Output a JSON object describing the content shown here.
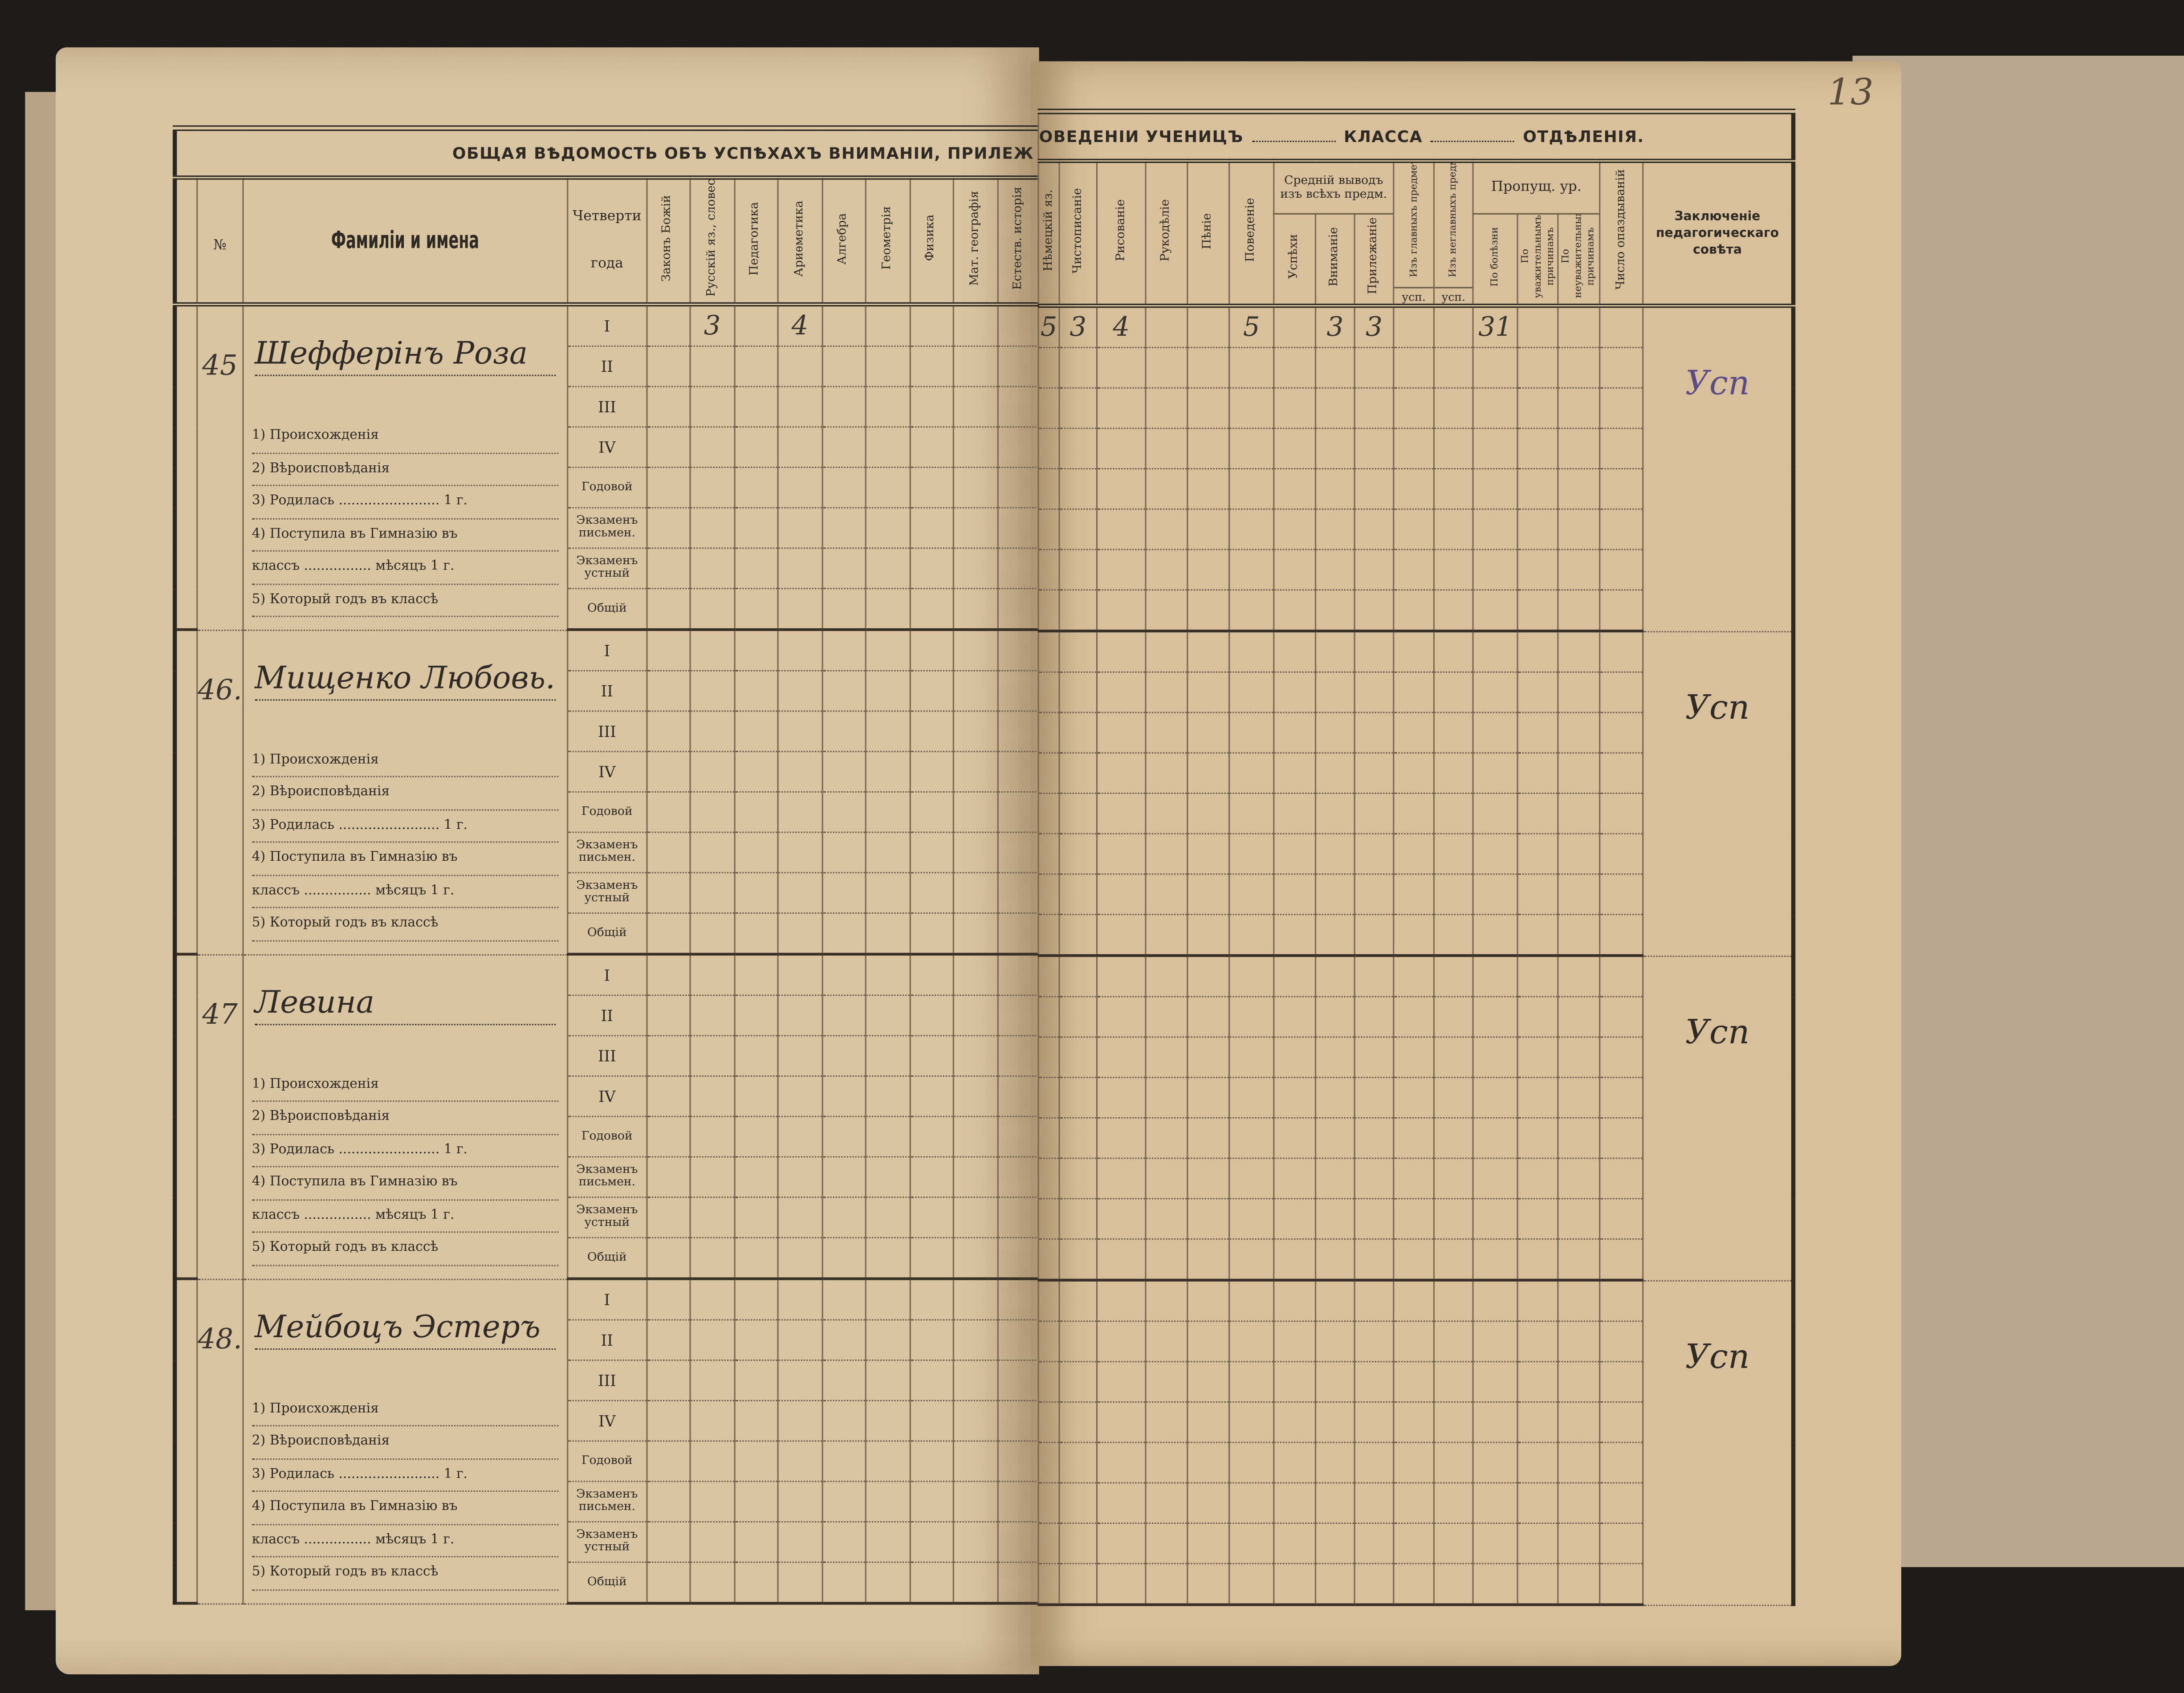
{
  "page_number": "13",
  "header": {
    "title_left": "ОБЩАЯ ВѢДОМОСТЬ ОБЪ УСПѢХАХЪ ВНИМАНІИ, ПРИЛЕЖ",
    "title_right_1": "ОВЕДЕНІИ УЧЕНИЦЪ",
    "title_right_2": "КЛАССА",
    "title_right_3": "ОТДѢЛЕНІЯ."
  },
  "left_columns": {
    "number": "№",
    "names": "Фамиліи и имена",
    "quarters_1": "Четверти",
    "quarters_2": "года",
    "subjects": [
      "Законъ Божій",
      "Русскій яз., словес. и сочиненіе",
      "Педагогика",
      "Ариѳметика",
      "Алгебра",
      "Геометрія",
      "Физика",
      "Мат. географія",
      "Естеств. исторія"
    ]
  },
  "right_columns": {
    "subjects_before": [
      "Нѣмецкій яз.",
      "Чистописаніе",
      "Рисованіе",
      "Рукодѣліе",
      "Пѣніе",
      "Поведеніе"
    ],
    "average_group": "Средній выводъ изъ всѣхъ предм.",
    "average_cols": [
      "Успѣхи",
      "Вниманіе",
      "Прилежаніе"
    ],
    "main_subjects": "Изъ главныхъ предметовъ",
    "minor_subjects": "Изъ неглавныхъ предметовъ",
    "usp_label": "усп.",
    "missed_group": "Пропущ. ур.",
    "missed_cols": [
      "По болѣзни",
      "По уважительнымъ причинамъ",
      "По неуважительнымъ причинамъ"
    ],
    "late_count": "Число опаздываній",
    "conclusion": "Заключеніе педагогическаго совѣта"
  },
  "periods": [
    "I",
    "II",
    "III",
    "IV",
    "Годовой",
    "Экзаменъ письмен.",
    "Экзаменъ устный",
    "Общій"
  ],
  "info_lines": [
    "1) Происхожденія",
    "2) Вѣроисповѣданія",
    "3) Родилась ........................ 1     г.",
    "4) Поступила въ Гимназію въ",
    "классъ ................ мѣсяцъ 1     г.",
    "5) Который годъ въ классѣ"
  ],
  "students": [
    {
      "number": "45",
      "name": "Шефферінъ Роза",
      "conclusion": "Усп",
      "q1_left": [
        "",
        "3",
        "",
        "4",
        "",
        "",
        "",
        "",
        ""
      ],
      "q1_right": [
        "5",
        "3",
        "4",
        "",
        "",
        "5",
        "",
        "3",
        "3",
        "",
        "",
        "31",
        "",
        "",
        ""
      ]
    },
    {
      "number": "46.",
      "name": "Мищенко Любовь.",
      "conclusion": "Усп",
      "q1_left": [
        "",
        "",
        "",
        "",
        "",
        "",
        "",
        "",
        ""
      ],
      "q1_right": [
        "",
        "",
        "",
        "",
        "",
        "",
        "",
        "",
        "",
        "",
        "",
        "",
        "",
        "",
        ""
      ]
    },
    {
      "number": "47",
      "name": "Левина",
      "conclusion": "Усп",
      "q1_left": [
        "",
        "",
        "",
        "",
        "",
        "",
        "",
        "",
        ""
      ],
      "q1_right": [
        "",
        "",
        "",
        "",
        "",
        "",
        "",
        "",
        "",
        "",
        "",
        "",
        "",
        "",
        ""
      ]
    },
    {
      "number": "48.",
      "name": "Мейбоцъ Эстеръ",
      "conclusion": "Усп",
      "q1_left": [
        "",
        "",
        "",
        "",
        "",
        "",
        "",
        "",
        ""
      ],
      "q1_right": [
        "",
        "",
        "",
        "",
        "",
        "",
        "",
        "",
        "",
        "",
        "",
        "",
        "",
        "",
        ""
      ]
    }
  ],
  "colors": {
    "paper": "#dac5a2",
    "ink": "#2f2a25",
    "violet_ink": "#5d4b86",
    "cardboard": "#b9a78f"
  }
}
